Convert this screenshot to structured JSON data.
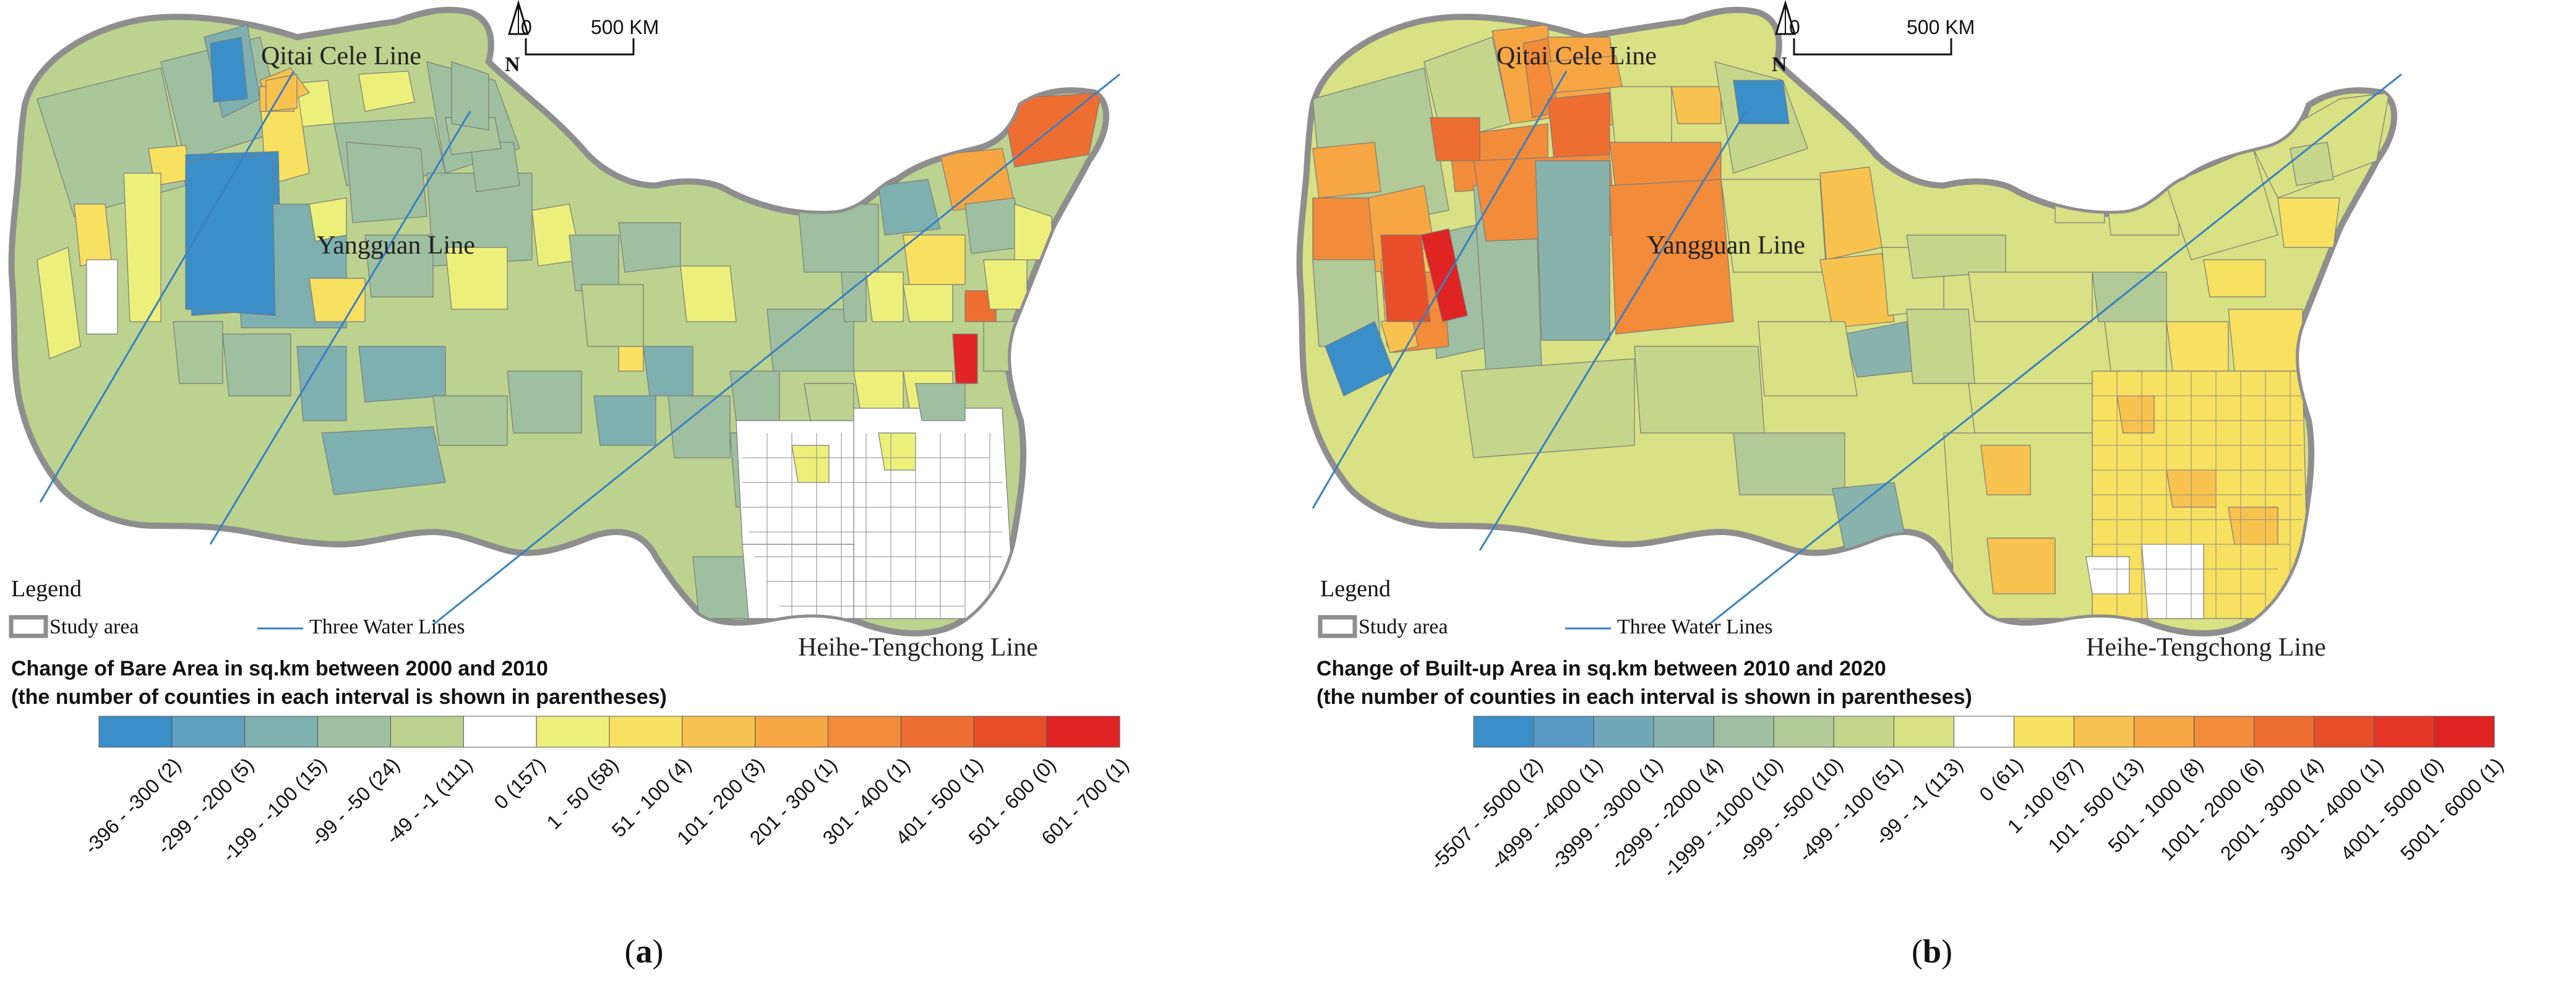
{
  "panels": [
    {
      "id": "a",
      "caption": "(a)",
      "caption_letter": "a",
      "map_title_line1": "Change of Bare Area in sq.km between 2000 and 2010",
      "map_title_line2": "(the number of counties in each interval is shown in parentheses)",
      "scale": {
        "start": "0",
        "end": "500 KM"
      },
      "north": "N",
      "lines": {
        "qitai": "Qitai Cele Line",
        "yangguan": "Yangguan Line",
        "heihe": "Heihe-Tengchong Line"
      },
      "legend": {
        "title": "Legend",
        "study_area": "Study area",
        "water_lines": "Three Water Lines"
      },
      "classes": [
        {
          "label": "-396 - -300 (2)",
          "color": "#3a8fc9"
        },
        {
          "label": "-299 - -200 (5)",
          "color": "#5f9fbf"
        },
        {
          "label": "-199 - -100 (15)",
          "color": "#7fb0b0"
        },
        {
          "label": "-99 - -50 (24)",
          "color": "#9fc0a0"
        },
        {
          "label": "-49 - -1 (111)",
          "color": "#bcd28f"
        },
        {
          "label": "0 (157)",
          "color": "#ffffff"
        },
        {
          "label": "1 - 50 (58)",
          "color": "#ecf07a"
        },
        {
          "label": "51 - 100 (4)",
          "color": "#f8e060"
        },
        {
          "label": "101 - 200 (3)",
          "color": "#f8c24e"
        },
        {
          "label": "201 - 300 (1)",
          "color": "#f6a643"
        },
        {
          "label": "301 - 400 (1)",
          "color": "#f28b3a"
        },
        {
          "label": "401 - 500 (1)",
          "color": "#ee6e31"
        },
        {
          "label": "501 - 600 (0)",
          "color": "#e94e2a"
        },
        {
          "label": "601 - 700 (1)",
          "color": "#e02424"
        }
      ]
    },
    {
      "id": "b",
      "caption": "(b)",
      "caption_letter": "b",
      "map_title_line1": "Change of Built-up Area in sq.km between 2010 and 2020",
      "map_title_line2": "(the number of counties in each interval is shown in parentheses)",
      "scale": {
        "start": "0",
        "end": "500 KM"
      },
      "north": "N",
      "lines": {
        "qitai": "Qitai Cele Line",
        "yangguan": "Yangguan Line",
        "heihe": "Heihe-Tengchong Line"
      },
      "legend": {
        "title": "Legend",
        "study_area": "Study area",
        "water_lines": "Three Water Lines"
      },
      "classes": [
        {
          "label": "-5507 - -5000 (2)",
          "color": "#3a8fc9"
        },
        {
          "label": "-4999 - -4000 (1)",
          "color": "#579bc4"
        },
        {
          "label": "-3999 - -3000 (1)",
          "color": "#70a8b9"
        },
        {
          "label": "-2999 - -2000 (4)",
          "color": "#88b3ad"
        },
        {
          "label": "-1999 - -1000 (10)",
          "color": "#9ebfa2"
        },
        {
          "label": "-999 - -500 (10)",
          "color": "#b2ca96"
        },
        {
          "label": "-499 - -100 (51)",
          "color": "#c5d68c"
        },
        {
          "label": "-99 - -1 (113)",
          "color": "#d8e183"
        },
        {
          "label": "0 (61)",
          "color": "#ffffff"
        },
        {
          "label": "1 -100 (97)",
          "color": "#f8e060"
        },
        {
          "label": "101 - 500 (13)",
          "color": "#f8c24e"
        },
        {
          "label": "501 - 1000 (8)",
          "color": "#f6a643"
        },
        {
          "label": "1001 - 2000 (6)",
          "color": "#f28b3a"
        },
        {
          "label": "2001 - 3000 (4)",
          "color": "#ee6e31"
        },
        {
          "label": "3001 - 4000 (1)",
          "color": "#e94e2a"
        },
        {
          "label": "4001 - 5000 (0)",
          "color": "#e43726"
        },
        {
          "label": "5001 - 6000 (1)",
          "color": "#e02424"
        }
      ]
    }
  ]
}
